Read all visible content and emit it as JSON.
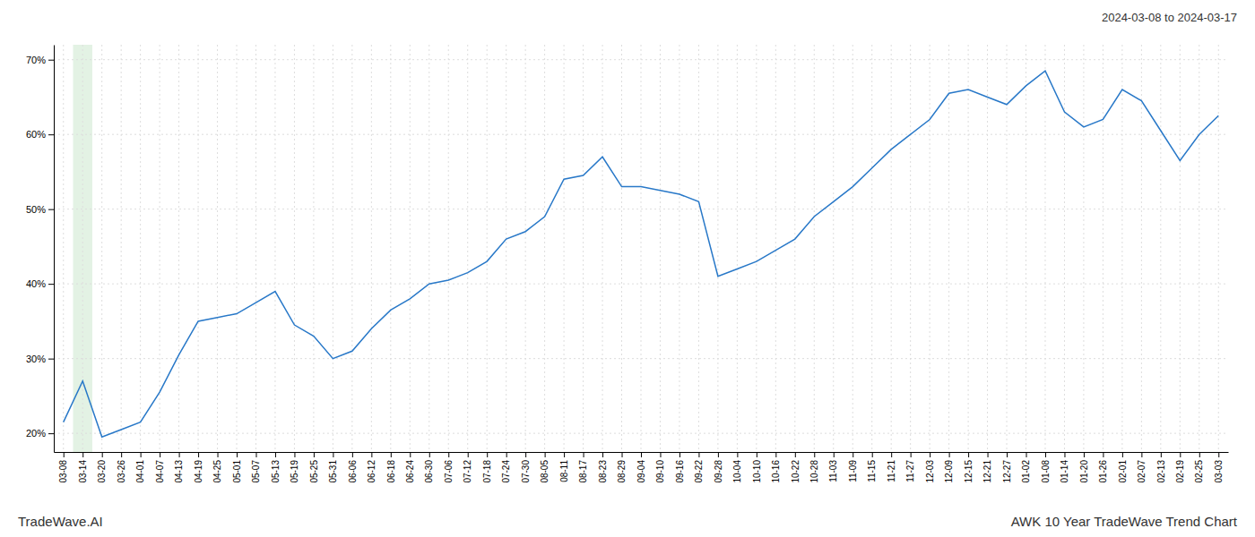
{
  "chart_data": {
    "type": "line",
    "title": "AWK 10 Year TradeWave Trend Chart",
    "subtitle": "2024-03-08 to 2024-03-17",
    "annotations": [
      "TradeWave.AI"
    ],
    "categories": [
      "03-08",
      "03-14",
      "03-20",
      "03-26",
      "04-01",
      "04-07",
      "04-13",
      "04-19",
      "04-25",
      "05-01",
      "05-07",
      "05-13",
      "05-19",
      "05-25",
      "05-31",
      "06-06",
      "06-12",
      "06-18",
      "06-24",
      "06-30",
      "07-06",
      "07-12",
      "07-18",
      "07-24",
      "07-30",
      "08-05",
      "08-11",
      "08-17",
      "08-23",
      "08-29",
      "09-04",
      "09-10",
      "09-16",
      "09-22",
      "09-28",
      "10-04",
      "10-10",
      "10-16",
      "10-22",
      "10-28",
      "11-03",
      "11-09",
      "11-15",
      "11-21",
      "11-27",
      "12-03",
      "12-09",
      "12-15",
      "12-21",
      "12-27",
      "01-02",
      "01-08",
      "01-14",
      "01-20",
      "01-26",
      "02-01",
      "02-07",
      "02-13",
      "02-19",
      "02-25",
      "03-03"
    ],
    "values": [
      0.215,
      0.27,
      0.195,
      0.205,
      0.215,
      0.255,
      0.305,
      0.35,
      0.355,
      0.36,
      0.375,
      0.39,
      0.345,
      0.33,
      0.3,
      0.31,
      0.34,
      0.365,
      0.38,
      0.4,
      0.405,
      0.415,
      0.43,
      0.46,
      0.47,
      0.49,
      0.54,
      0.545,
      0.57,
      0.53,
      0.53,
      0.525,
      0.52,
      0.51,
      0.41,
      0.42,
      0.43,
      0.445,
      0.46,
      0.49,
      0.51,
      0.53,
      0.555,
      0.58,
      0.6,
      0.62,
      0.655,
      0.66,
      0.65,
      0.64,
      0.665,
      0.685,
      0.63,
      0.61,
      0.62,
      0.66,
      0.645,
      0.605,
      0.565,
      0.6,
      0.625
    ],
    "color": "#2878c8",
    "highlight": "03-14",
    "ylim": [
      0.175,
      0.72
    ],
    "yticks": [
      {
        "value": 0.2,
        "label": "20%"
      },
      {
        "value": 0.3,
        "label": "30%"
      },
      {
        "value": 0.4,
        "label": "40%"
      },
      {
        "value": 0.5,
        "label": "50%"
      },
      {
        "value": 0.6,
        "label": "60%"
      },
      {
        "value": 0.7,
        "label": "70%"
      }
    ],
    "grid": true
  }
}
